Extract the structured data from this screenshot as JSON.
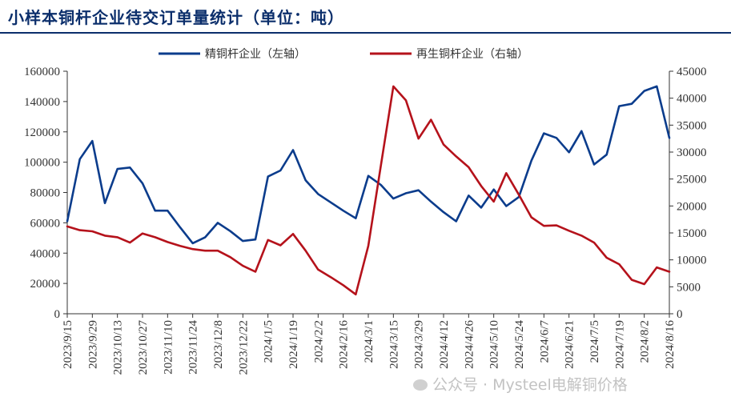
{
  "title": "小样本铜杆企业待交订单量统计（单位：吨）",
  "watermark": "公众号 · Mysteel电解铜价格",
  "colors": {
    "series1": "#0b3c8c",
    "series2": "#b5121b",
    "title": "#0b2e6b"
  },
  "chart_data": {
    "type": "line",
    "title": "小样本铜杆企业待交订单量统计（单位：吨）",
    "legend_position": "top",
    "grid": false,
    "x_tick_labels": [
      "2023/9/15",
      "2023/9/29",
      "2023/10/13",
      "2023/10/27",
      "2023/11/10",
      "2023/11/24",
      "2023/12/8",
      "2023/12/22",
      "2024/1/5",
      "2024/1/19",
      "2024/2/2",
      "2024/2/16",
      "2024/3/1",
      "2024/3/15",
      "2024/3/29",
      "2024/4/12",
      "2024/4/26",
      "2024/5/10",
      "2024/5/24",
      "2024/6/7",
      "2024/6/21",
      "2024/7/5",
      "2024/7/19",
      "2024/8/2",
      "2024/8/16"
    ],
    "x": [
      "2023/9/15",
      "2023/9/22",
      "2023/9/29",
      "2023/10/6",
      "2023/10/13",
      "2023/10/20",
      "2023/10/27",
      "2023/11/3",
      "2023/11/10",
      "2023/11/17",
      "2023/11/24",
      "2023/12/1",
      "2023/12/8",
      "2023/12/15",
      "2023/12/22",
      "2023/12/29",
      "2024/1/5",
      "2024/1/12",
      "2024/1/19",
      "2024/1/26",
      "2024/2/2",
      "2024/2/9",
      "2024/2/16",
      "2024/2/23",
      "2024/3/1",
      "2024/3/8",
      "2024/3/15",
      "2024/3/22",
      "2024/3/29",
      "2024/4/5",
      "2024/4/12",
      "2024/4/19",
      "2024/4/26",
      "2024/5/3",
      "2024/5/10",
      "2024/5/17",
      "2024/5/24",
      "2024/5/31",
      "2024/6/7",
      "2024/6/14",
      "2024/6/21",
      "2024/6/28",
      "2024/7/5",
      "2024/7/12",
      "2024/7/19",
      "2024/7/26",
      "2024/8/2",
      "2024/8/9",
      "2024/8/16"
    ],
    "y_left_lim": [
      0,
      160000
    ],
    "y_left_ticks": [
      "0",
      "20000",
      "40000",
      "60000",
      "80000",
      "100000",
      "120000",
      "140000",
      "160000"
    ],
    "y_right_lim": [
      0,
      45000
    ],
    "y_right_ticks": [
      "0",
      "5000",
      "10000",
      "15000",
      "20000",
      "25000",
      "30000",
      "35000",
      "40000",
      "45000"
    ],
    "series": [
      {
        "name": "精铜杆企业（左轴）",
        "axis": "left",
        "values": [
          61000,
          102000,
          114000,
          73000,
          95500,
          96500,
          86000,
          68000,
          68000,
          57000,
          46500,
          50500,
          60000,
          54500,
          48000,
          49000,
          90500,
          94500,
          108000,
          88000,
          79000,
          73500,
          68000,
          63000,
          91000,
          85000,
          76000,
          79500,
          81500,
          74000,
          67000,
          61000,
          78000,
          70000,
          82000,
          71000,
          77000,
          101000,
          119000,
          116000,
          106500,
          120500,
          98500,
          105000,
          137000,
          138500,
          147000,
          150000,
          116000
        ]
      },
      {
        "name": "再生铜杆企业（右轴）",
        "axis": "right",
        "values": [
          16200,
          15500,
          15300,
          14500,
          14200,
          13200,
          14900,
          14200,
          13300,
          12600,
          12000,
          11700,
          11700,
          10500,
          8900,
          7800,
          13700,
          12700,
          14800,
          11700,
          8200,
          6800,
          5300,
          3600,
          12600,
          27500,
          42200,
          39600,
          32500,
          36000,
          31400,
          29200,
          27200,
          23700,
          20800,
          26100,
          22100,
          17900,
          16300,
          16400,
          15400,
          14500,
          13200,
          10400,
          9200,
          6300,
          5500,
          8600,
          7800
        ]
      }
    ]
  }
}
